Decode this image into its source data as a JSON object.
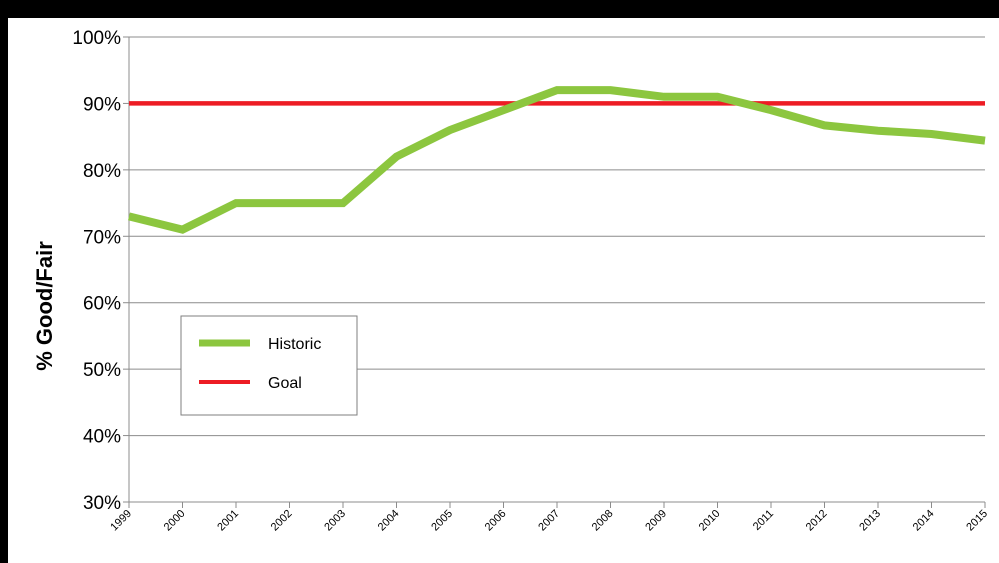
{
  "chart_data": {
    "type": "line",
    "title": "",
    "xlabel": "",
    "ylabel": "% Good/Fair",
    "x": [
      "1999",
      "2000",
      "2001",
      "2002",
      "2003",
      "2004",
      "2005",
      "2006",
      "2007",
      "2008",
      "2009",
      "2010",
      "2011",
      "2012",
      "2013",
      "2014",
      "2015"
    ],
    "yticks": [
      "30%",
      "40%",
      "50%",
      "60%",
      "70%",
      "80%",
      "90%",
      "100%"
    ],
    "ylim": [
      30,
      100
    ],
    "grid": true,
    "legend_position": "left-middle",
    "series": [
      {
        "name": "Historic",
        "color": "#8cc63f",
        "values": [
          73,
          71,
          75,
          75,
          75,
          82,
          86,
          89,
          92,
          92,
          91,
          91,
          89,
          86.7,
          85.9,
          85.4,
          84.4
        ]
      },
      {
        "name": "Goal",
        "color": "#ed1c24",
        "values": [
          90,
          90,
          90,
          90,
          90,
          90,
          90,
          90,
          90,
          90,
          90,
          90,
          90,
          90,
          90,
          90,
          90
        ]
      }
    ]
  }
}
